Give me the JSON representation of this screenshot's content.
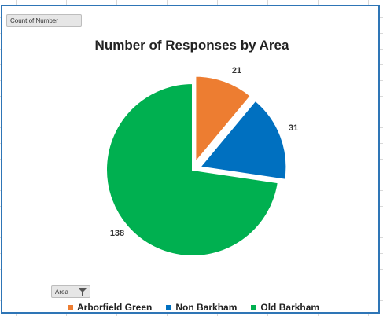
{
  "pivot": {
    "value_field_label": "Count of Number",
    "axis_field_label": "Area"
  },
  "icons": {
    "filter": "filter-dropdown-icon"
  },
  "colors": {
    "Arborfield Green": "#ed7d31",
    "Non Barkham": "#0070c0",
    "Old Barkham": "#00b050"
  },
  "chart_data": {
    "type": "pie",
    "title": "Number of Responses by Area",
    "categories": [
      "Arborfield Green",
      "Non Barkham",
      "Old Barkham"
    ],
    "values": [
      21,
      31,
      138
    ],
    "data_labels": [
      "21",
      "31",
      "138"
    ],
    "legend_position": "bottom",
    "exploded": true
  }
}
